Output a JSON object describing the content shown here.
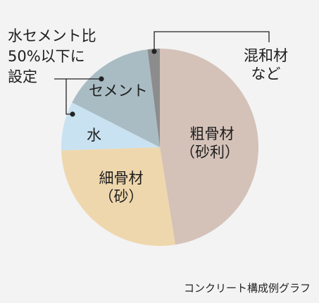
{
  "chart_data": {
    "type": "pie",
    "start_angle_deg": 0,
    "direction": "clockwise",
    "slices": [
      {
        "label": "粗骨材（砂利）",
        "value": 47.5,
        "color": "#d4c2b8"
      },
      {
        "label": "細骨材（砂）",
        "value": 27,
        "color": "#efd7ad"
      },
      {
        "label": "水",
        "value": 8,
        "color": "#c9e2f1"
      },
      {
        "label": "セメント",
        "value": 15.5,
        "color": "#a9bcc4"
      },
      {
        "label": "混和材など",
        "value": 2,
        "color": "#8c8c8c"
      }
    ],
    "labels": {
      "coarse_line1": "粗骨材",
      "coarse_line2": "（砂利）",
      "fine_line1": "細骨材",
      "fine_line2": "（砂）",
      "water": "水",
      "cement": "セメント",
      "admixture_line1": "混和材",
      "admixture_line2": "など"
    },
    "annotation": {
      "line1": "水セメント比",
      "line2": "50%以下に",
      "line3": "設定"
    },
    "caption": "コンクリート構成例グラフ"
  }
}
